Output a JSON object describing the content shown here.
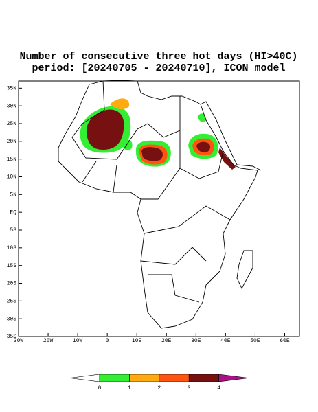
{
  "title": "Number of consecutive three hot days (HI>40C)",
  "subtitle": "period: [20240705 - 20240710], ICON model",
  "map": {
    "xlim": [
      -30,
      65
    ],
    "ylim": [
      -35,
      37
    ],
    "xticks": [
      {
        "value": -30,
        "label": "30W"
      },
      {
        "value": -20,
        "label": "20W"
      },
      {
        "value": -10,
        "label": "10W"
      },
      0,
      {
        "value": 10,
        "label": "10E"
      },
      {
        "value": 20,
        "label": "20E"
      },
      {
        "value": 30,
        "label": "30E"
      },
      {
        "value": 40,
        "label": "40E"
      },
      {
        "value": 50,
        "label": "50E"
      },
      {
        "value": 60,
        "label": "60E"
      }
    ],
    "yticks": [
      {
        "value": 35,
        "label": "35N"
      },
      {
        "value": 30,
        "label": "30N"
      },
      {
        "value": 25,
        "label": "25N"
      },
      {
        "value": 20,
        "label": "20N"
      },
      {
        "value": 15,
        "label": "15N"
      },
      {
        "value": 10,
        "label": "10N"
      },
      {
        "value": 5,
        "label": "5N"
      },
      {
        "value": 0,
        "label": "EQ"
      },
      {
        "value": -5,
        "label": "5S"
      },
      {
        "value": -10,
        "label": "10S"
      },
      {
        "value": -15,
        "label": "15S"
      },
      {
        "value": -20,
        "label": "20S"
      },
      {
        "value": -25,
        "label": "25S"
      },
      {
        "value": -30,
        "label": "30S"
      },
      {
        "value": -35,
        "label": "35S"
      }
    ]
  },
  "colorbar": {
    "labels": [
      0,
      1,
      2,
      3,
      4
    ],
    "colors": [
      "#ffffff",
      "#33ee33",
      "#ffaa11",
      "#ff5511",
      "#771111",
      "#aa1188"
    ]
  }
}
